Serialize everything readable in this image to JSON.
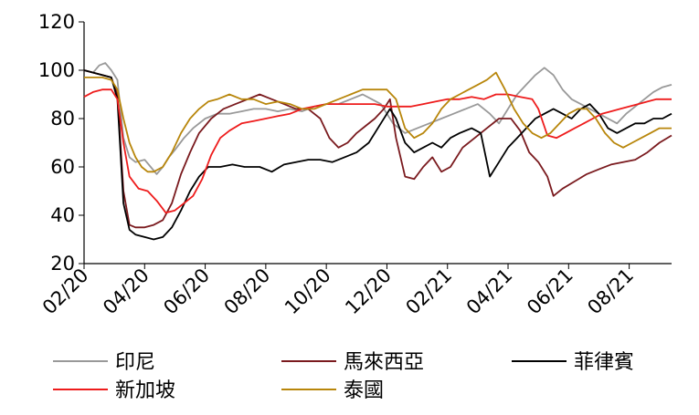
{
  "chart_data": {
    "type": "line",
    "title": "",
    "xlabel": "",
    "ylabel": "",
    "ylim": [
      20,
      120
    ],
    "yticks": [
      20,
      40,
      60,
      80,
      100,
      120
    ],
    "x_ticks": [
      "02/20",
      "04/20",
      "06/20",
      "08/20",
      "10/20",
      "12/20",
      "02/21",
      "04/21",
      "06/21",
      "08/21"
    ],
    "x_range_months": [
      0,
      19.4
    ],
    "grid": false,
    "legend_position": "bottom",
    "series": [
      {
        "name": "印尼",
        "color": "#999999",
        "points": [
          [
            0,
            100
          ],
          [
            0.3,
            99
          ],
          [
            0.5,
            102
          ],
          [
            0.7,
            103
          ],
          [
            0.9,
            100
          ],
          [
            1.1,
            96
          ],
          [
            1.3,
            72
          ],
          [
            1.5,
            64
          ],
          [
            1.7,
            62
          ],
          [
            2.0,
            63
          ],
          [
            2.2,
            60
          ],
          [
            2.4,
            57
          ],
          [
            2.6,
            60
          ],
          [
            2.8,
            64
          ],
          [
            3.0,
            67
          ],
          [
            3.3,
            72
          ],
          [
            3.6,
            76
          ],
          [
            4.0,
            80
          ],
          [
            4.4,
            82
          ],
          [
            4.8,
            82
          ],
          [
            5.2,
            83
          ],
          [
            5.6,
            84
          ],
          [
            6.0,
            84
          ],
          [
            6.4,
            83
          ],
          [
            6.8,
            84
          ],
          [
            7.2,
            83
          ],
          [
            7.6,
            85
          ],
          [
            8.0,
            86
          ],
          [
            8.4,
            86
          ],
          [
            8.8,
            88
          ],
          [
            9.2,
            90
          ],
          [
            9.5,
            88
          ],
          [
            9.8,
            86
          ],
          [
            10.2,
            78
          ],
          [
            10.6,
            74
          ],
          [
            11.0,
            76
          ],
          [
            11.4,
            78
          ],
          [
            11.8,
            80
          ],
          [
            12.2,
            82
          ],
          [
            12.6,
            84
          ],
          [
            13.0,
            86
          ],
          [
            13.4,
            82
          ],
          [
            13.7,
            78
          ],
          [
            14.0,
            84
          ],
          [
            14.3,
            90
          ],
          [
            14.6,
            94
          ],
          [
            14.9,
            98
          ],
          [
            15.2,
            101
          ],
          [
            15.5,
            98
          ],
          [
            15.8,
            92
          ],
          [
            16.1,
            88
          ],
          [
            16.4,
            86
          ],
          [
            16.7,
            84
          ],
          [
            17.0,
            82
          ],
          [
            17.3,
            80
          ],
          [
            17.6,
            78
          ],
          [
            17.9,
            82
          ],
          [
            18.2,
            85
          ],
          [
            18.5,
            88
          ],
          [
            18.8,
            91
          ],
          [
            19.1,
            93
          ],
          [
            19.4,
            94
          ]
        ]
      },
      {
        "name": "馬來西亞",
        "color": "#7a1a1e",
        "points": [
          [
            0,
            100
          ],
          [
            0.3,
            99
          ],
          [
            0.6,
            98
          ],
          [
            0.9,
            97
          ],
          [
            1.1,
            90
          ],
          [
            1.3,
            50
          ],
          [
            1.5,
            36
          ],
          [
            1.7,
            35
          ],
          [
            2.0,
            35
          ],
          [
            2.3,
            36
          ],
          [
            2.6,
            38
          ],
          [
            2.9,
            45
          ],
          [
            3.2,
            57
          ],
          [
            3.5,
            66
          ],
          [
            3.8,
            74
          ],
          [
            4.2,
            80
          ],
          [
            4.6,
            84
          ],
          [
            5.0,
            86
          ],
          [
            5.4,
            88
          ],
          [
            5.8,
            90
          ],
          [
            6.2,
            88
          ],
          [
            6.6,
            86
          ],
          [
            7.0,
            84
          ],
          [
            7.4,
            84
          ],
          [
            7.8,
            80
          ],
          [
            8.1,
            72
          ],
          [
            8.4,
            68
          ],
          [
            8.7,
            70
          ],
          [
            9.0,
            74
          ],
          [
            9.3,
            77
          ],
          [
            9.6,
            80
          ],
          [
            9.9,
            84
          ],
          [
            10.1,
            88
          ],
          [
            10.3,
            72
          ],
          [
            10.6,
            56
          ],
          [
            10.9,
            55
          ],
          [
            11.2,
            60
          ],
          [
            11.5,
            64
          ],
          [
            11.8,
            58
          ],
          [
            12.1,
            60
          ],
          [
            12.5,
            68
          ],
          [
            12.9,
            72
          ],
          [
            13.3,
            76
          ],
          [
            13.7,
            80
          ],
          [
            14.1,
            80
          ],
          [
            14.4,
            75
          ],
          [
            14.7,
            66
          ],
          [
            15.0,
            62
          ],
          [
            15.3,
            56
          ],
          [
            15.5,
            48
          ],
          [
            15.8,
            51
          ],
          [
            16.2,
            54
          ],
          [
            16.6,
            57
          ],
          [
            17.0,
            59
          ],
          [
            17.4,
            61
          ],
          [
            17.8,
            62
          ],
          [
            18.2,
            63
          ],
          [
            18.6,
            66
          ],
          [
            19.0,
            70
          ],
          [
            19.4,
            73
          ]
        ]
      },
      {
        "name": "菲律賓",
        "color": "#000000",
        "points": [
          [
            0,
            100
          ],
          [
            0.3,
            99
          ],
          [
            0.6,
            98
          ],
          [
            0.9,
            97
          ],
          [
            1.1,
            88
          ],
          [
            1.3,
            45
          ],
          [
            1.5,
            34
          ],
          [
            1.7,
            32
          ],
          [
            2.0,
            31
          ],
          [
            2.3,
            30
          ],
          [
            2.6,
            31
          ],
          [
            2.9,
            35
          ],
          [
            3.2,
            42
          ],
          [
            3.5,
            50
          ],
          [
            3.8,
            56
          ],
          [
            4.1,
            60
          ],
          [
            4.5,
            60
          ],
          [
            4.9,
            61
          ],
          [
            5.3,
            60
          ],
          [
            5.8,
            60
          ],
          [
            6.2,
            58
          ],
          [
            6.6,
            61
          ],
          [
            7.0,
            62
          ],
          [
            7.4,
            63
          ],
          [
            7.8,
            63
          ],
          [
            8.2,
            62
          ],
          [
            8.6,
            64
          ],
          [
            9.0,
            66
          ],
          [
            9.4,
            70
          ],
          [
            9.8,
            78
          ],
          [
            10.1,
            84
          ],
          [
            10.3,
            80
          ],
          [
            10.6,
            70
          ],
          [
            10.9,
            66
          ],
          [
            11.2,
            68
          ],
          [
            11.5,
            70
          ],
          [
            11.8,
            68
          ],
          [
            12.1,
            72
          ],
          [
            12.4,
            74
          ],
          [
            12.8,
            76
          ],
          [
            13.1,
            74
          ],
          [
            13.4,
            56
          ],
          [
            13.7,
            62
          ],
          [
            14.0,
            68
          ],
          [
            14.3,
            72
          ],
          [
            14.6,
            76
          ],
          [
            14.9,
            80
          ],
          [
            15.2,
            82
          ],
          [
            15.5,
            84
          ],
          [
            15.8,
            82
          ],
          [
            16.1,
            80
          ],
          [
            16.4,
            84
          ],
          [
            16.7,
            86
          ],
          [
            17.0,
            82
          ],
          [
            17.3,
            76
          ],
          [
            17.6,
            74
          ],
          [
            17.9,
            76
          ],
          [
            18.2,
            78
          ],
          [
            18.5,
            78
          ],
          [
            18.8,
            80
          ],
          [
            19.1,
            80
          ],
          [
            19.4,
            82
          ]
        ]
      },
      {
        "name": "新加坡",
        "color": "#ee1c1c",
        "points": [
          [
            0,
            89
          ],
          [
            0.3,
            91
          ],
          [
            0.6,
            92
          ],
          [
            0.9,
            92
          ],
          [
            1.1,
            88
          ],
          [
            1.3,
            70
          ],
          [
            1.5,
            56
          ],
          [
            1.8,
            51
          ],
          [
            2.1,
            50
          ],
          [
            2.4,
            46
          ],
          [
            2.7,
            41
          ],
          [
            3.0,
            42
          ],
          [
            3.3,
            45
          ],
          [
            3.6,
            48
          ],
          [
            3.9,
            55
          ],
          [
            4.2,
            65
          ],
          [
            4.5,
            72
          ],
          [
            4.8,
            75
          ],
          [
            5.2,
            78
          ],
          [
            5.6,
            79
          ],
          [
            6.0,
            80
          ],
          [
            6.4,
            81
          ],
          [
            6.8,
            82
          ],
          [
            7.2,
            84
          ],
          [
            7.6,
            85
          ],
          [
            8.0,
            86
          ],
          [
            8.4,
            86
          ],
          [
            8.8,
            86
          ],
          [
            9.2,
            86
          ],
          [
            9.6,
            86
          ],
          [
            10.0,
            85
          ],
          [
            10.4,
            85
          ],
          [
            10.8,
            85
          ],
          [
            11.2,
            86
          ],
          [
            11.6,
            87
          ],
          [
            12.0,
            88
          ],
          [
            12.4,
            88
          ],
          [
            12.8,
            89
          ],
          [
            13.2,
            88
          ],
          [
            13.6,
            90
          ],
          [
            14.0,
            90
          ],
          [
            14.4,
            89
          ],
          [
            14.8,
            88
          ],
          [
            15.0,
            84
          ],
          [
            15.3,
            73
          ],
          [
            15.6,
            72
          ],
          [
            15.9,
            74
          ],
          [
            16.2,
            76
          ],
          [
            16.5,
            78
          ],
          [
            16.8,
            80
          ],
          [
            17.1,
            82
          ],
          [
            17.4,
            83
          ],
          [
            17.7,
            84
          ],
          [
            18.0,
            85
          ],
          [
            18.3,
            86
          ],
          [
            18.6,
            87
          ],
          [
            18.9,
            88
          ],
          [
            19.2,
            88
          ],
          [
            19.4,
            88
          ]
        ]
      },
      {
        "name": "泰國",
        "color": "#b8860b",
        "points": [
          [
            0,
            97
          ],
          [
            0.3,
            97
          ],
          [
            0.6,
            97
          ],
          [
            0.9,
            96
          ],
          [
            1.1,
            92
          ],
          [
            1.3,
            80
          ],
          [
            1.5,
            70
          ],
          [
            1.7,
            64
          ],
          [
            1.9,
            60
          ],
          [
            2.1,
            58
          ],
          [
            2.3,
            58
          ],
          [
            2.6,
            60
          ],
          [
            2.9,
            66
          ],
          [
            3.2,
            74
          ],
          [
            3.5,
            80
          ],
          [
            3.8,
            84
          ],
          [
            4.1,
            87
          ],
          [
            4.4,
            88
          ],
          [
            4.8,
            90
          ],
          [
            5.2,
            88
          ],
          [
            5.6,
            88
          ],
          [
            6.0,
            86
          ],
          [
            6.4,
            87
          ],
          [
            6.8,
            86
          ],
          [
            7.2,
            84
          ],
          [
            7.6,
            84
          ],
          [
            8.0,
            86
          ],
          [
            8.4,
            88
          ],
          [
            8.8,
            90
          ],
          [
            9.2,
            92
          ],
          [
            9.6,
            92
          ],
          [
            10.0,
            92
          ],
          [
            10.3,
            88
          ],
          [
            10.6,
            76
          ],
          [
            10.9,
            72
          ],
          [
            11.2,
            74
          ],
          [
            11.5,
            78
          ],
          [
            11.8,
            84
          ],
          [
            12.1,
            88
          ],
          [
            12.4,
            90
          ],
          [
            12.7,
            92
          ],
          [
            13.0,
            94
          ],
          [
            13.3,
            96
          ],
          [
            13.6,
            99
          ],
          [
            13.9,
            92
          ],
          [
            14.2,
            84
          ],
          [
            14.5,
            78
          ],
          [
            14.8,
            74
          ],
          [
            15.1,
            72
          ],
          [
            15.4,
            74
          ],
          [
            15.7,
            78
          ],
          [
            16.0,
            82
          ],
          [
            16.3,
            84
          ],
          [
            16.6,
            84
          ],
          [
            16.9,
            80
          ],
          [
            17.2,
            74
          ],
          [
            17.5,
            70
          ],
          [
            17.8,
            68
          ],
          [
            18.1,
            70
          ],
          [
            18.4,
            72
          ],
          [
            18.7,
            74
          ],
          [
            19.0,
            76
          ],
          [
            19.4,
            76
          ]
        ]
      }
    ]
  }
}
